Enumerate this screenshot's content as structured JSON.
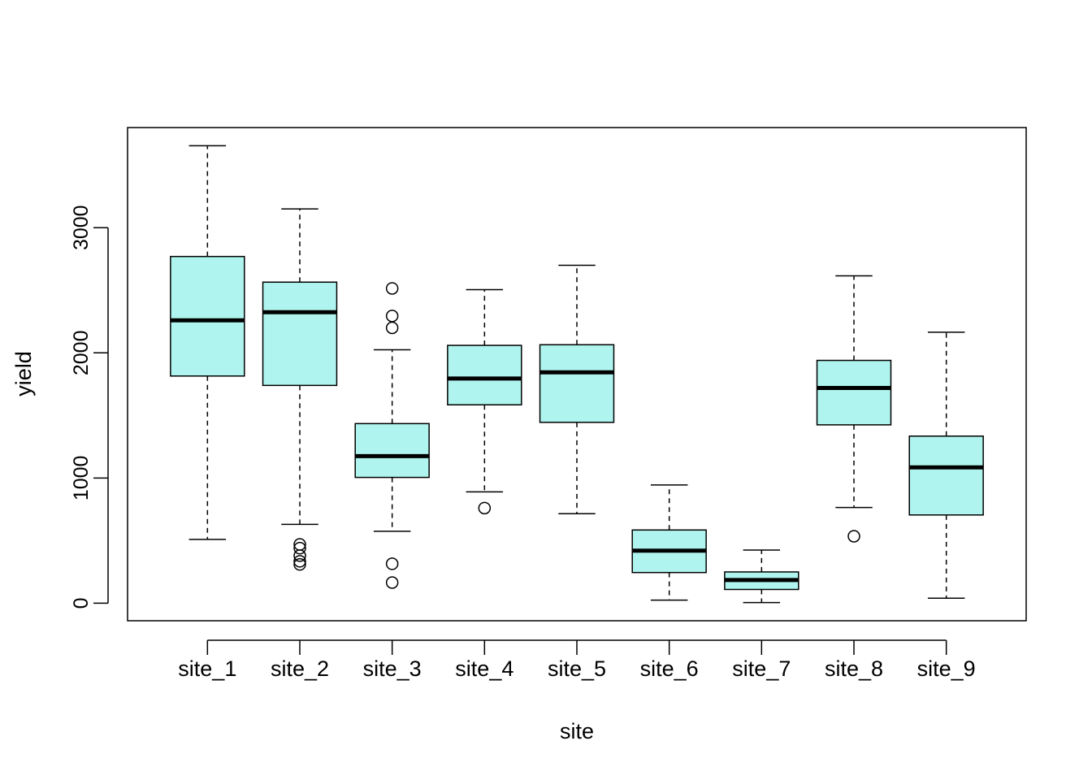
{
  "chart_data": {
    "type": "boxplot",
    "title": "",
    "xlabel": "site",
    "ylabel": "yield",
    "ylim": [
      -140,
      3800
    ],
    "yticks": [
      0,
      1000,
      2000,
      3000
    ],
    "grid": false,
    "colors": {
      "box_fill": "#aff4ee",
      "stroke": "#000000"
    },
    "categories": [
      "site_1",
      "site_2",
      "site_3",
      "site_4",
      "site_5",
      "site_6",
      "site_7",
      "site_8",
      "site_9"
    ],
    "boxes": [
      {
        "whisker_low": 510,
        "q1": 1815,
        "median": 2260,
        "q3": 2770,
        "whisker_high": 3655,
        "outliers": []
      },
      {
        "whisker_low": 630,
        "q1": 1740,
        "median": 2325,
        "q3": 2565,
        "whisker_high": 3150,
        "outliers": [
          310,
          335,
          380,
          440,
          470
        ]
      },
      {
        "whisker_low": 575,
        "q1": 1005,
        "median": 1175,
        "q3": 1435,
        "whisker_high": 2025,
        "outliers": [
          165,
          315,
          2200,
          2295,
          2515
        ]
      },
      {
        "whisker_low": 890,
        "q1": 1585,
        "median": 1795,
        "q3": 2060,
        "whisker_high": 2505,
        "outliers": [
          760
        ]
      },
      {
        "whisker_low": 715,
        "q1": 1445,
        "median": 1845,
        "q3": 2065,
        "whisker_high": 2700,
        "outliers": []
      },
      {
        "whisker_low": 25,
        "q1": 245,
        "median": 420,
        "q3": 585,
        "whisker_high": 945,
        "outliers": []
      },
      {
        "whisker_low": 5,
        "q1": 110,
        "median": 185,
        "q3": 250,
        "whisker_high": 425,
        "outliers": []
      },
      {
        "whisker_low": 765,
        "q1": 1425,
        "median": 1720,
        "q3": 1940,
        "whisker_high": 2615,
        "outliers": [
          535
        ]
      },
      {
        "whisker_low": 40,
        "q1": 705,
        "median": 1085,
        "q3": 1335,
        "whisker_high": 2165,
        "outliers": []
      }
    ]
  }
}
